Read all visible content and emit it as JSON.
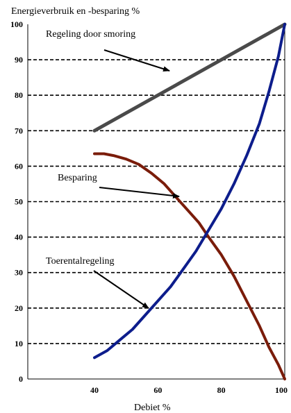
{
  "chart_data": {
    "type": "line",
    "title": "Energieverbruik en -besparing %",
    "xlabel": "Debiet %",
    "ylabel": "",
    "xlim": [
      40,
      100
    ],
    "ylim": [
      0,
      100
    ],
    "x_ticks": [
      "40",
      "60",
      "80",
      "100"
    ],
    "y_ticks": [
      "0",
      "10",
      "20",
      "30",
      "40",
      "50",
      "60",
      "70",
      "80",
      "90",
      "100"
    ],
    "grid": "horizontal-dashed",
    "colors": {
      "smoring": "#4a4a4a",
      "besparing": "#7a1c0a",
      "toerental": "#0d1d8c",
      "grid": "#000000"
    },
    "series": [
      {
        "name": "Regeling door smoring",
        "x": [
          40,
          100
        ],
        "y": [
          70,
          100
        ]
      },
      {
        "name": "Besparing",
        "x": [
          40,
          43,
          46,
          50,
          54,
          58,
          62,
          66,
          70,
          73,
          76,
          80,
          84,
          88,
          92,
          95,
          98,
          100
        ],
        "y": [
          63.5,
          63.5,
          63,
          62,
          60.5,
          58,
          55,
          51,
          47,
          44,
          40,
          35,
          29,
          22,
          15,
          9,
          4,
          0
        ]
      },
      {
        "name": "Toerentalregeling",
        "x": [
          40,
          44,
          48,
          52,
          56,
          60,
          64,
          68,
          72,
          76,
          80,
          84,
          88,
          92,
          95,
          98,
          100
        ],
        "y": [
          6,
          8,
          11,
          14,
          18,
          22,
          26,
          31,
          36,
          42,
          48,
          55,
          63,
          72,
          81,
          91,
          100
        ]
      }
    ],
    "annotations": [
      {
        "text": "Regeling door smoring",
        "series": "Regeling door smoring"
      },
      {
        "text": "Besparing",
        "series": "Besparing"
      },
      {
        "text": "Toerentalregeling",
        "series": "Toerentalregeling"
      }
    ]
  }
}
